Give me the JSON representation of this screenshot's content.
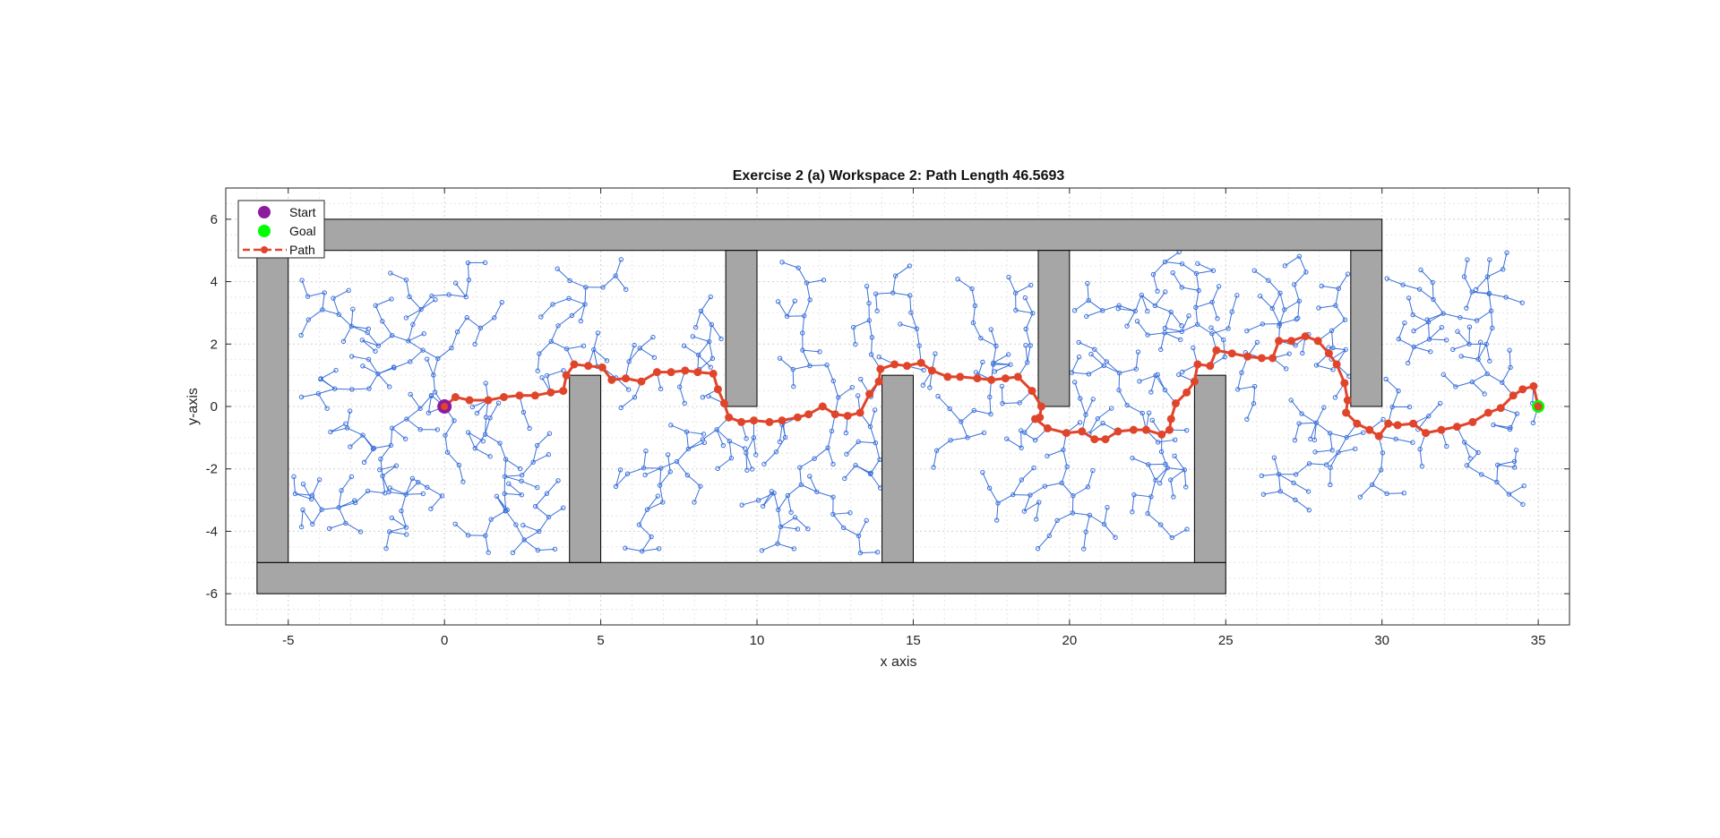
{
  "chart_data": {
    "type": "scatter",
    "title": "Exercise 2 (a) Workspace 2: Path Length 46.5693",
    "xlabel": "x axis",
    "ylabel": "y-axis",
    "xlim": [
      -7,
      36
    ],
    "ylim": [
      -7,
      7
    ],
    "x_ticks": [
      -5,
      0,
      5,
      10,
      15,
      20,
      25,
      30,
      35
    ],
    "y_ticks": [
      -6,
      -4,
      -2,
      0,
      2,
      4,
      6
    ],
    "grid": "on (major and minor, dotted)",
    "legend_position": "top-left",
    "colors": {
      "obstacle_fill": "#a6a6a6",
      "obstacle_edge": "#000000",
      "tree": "#3a6fd8",
      "path": "#e0452b",
      "start": "#8e1a9e",
      "goal": "#00ff00"
    },
    "obstacles": [
      {
        "x": [
          -6,
          30
        ],
        "y": [
          5,
          6
        ]
      },
      {
        "x": [
          -6,
          25
        ],
        "y": [
          -6,
          -5
        ]
      },
      {
        "x": [
          -6,
          -5
        ],
        "y": [
          -5,
          5
        ]
      },
      {
        "x": [
          4,
          5
        ],
        "y": [
          -5,
          1
        ]
      },
      {
        "x": [
          9,
          10
        ],
        "y": [
          0,
          5
        ]
      },
      {
        "x": [
          14,
          15
        ],
        "y": [
          -5,
          1
        ]
      },
      {
        "x": [
          19,
          20
        ],
        "y": [
          0,
          5
        ]
      },
      {
        "x": [
          24,
          25
        ],
        "y": [
          -5,
          1
        ]
      },
      {
        "x": [
          29,
          30
        ],
        "y": [
          0,
          5
        ]
      }
    ],
    "series": [
      {
        "name": "Start",
        "x": [
          0
        ],
        "y": [
          0
        ]
      },
      {
        "name": "Goal",
        "x": [
          35
        ],
        "y": [
          0
        ]
      },
      {
        "name": "Path",
        "x": [
          0,
          0.35,
          0.8,
          1.4,
          1.9,
          2.4,
          2.9,
          3.4,
          3.8,
          3.9,
          4.15,
          4.6,
          5.05,
          5.35,
          5.8,
          6.3,
          6.8,
          7.25,
          7.7,
          8.1,
          8.6,
          8.75,
          8.95,
          9.1,
          9.5,
          9.9,
          10.4,
          10.8,
          11.3,
          11.65,
          12.1,
          12.5,
          12.9,
          13.3,
          13.6,
          13.9,
          13.95,
          14.4,
          14.8,
          15.25,
          15.6,
          16.1,
          16.5,
          17.05,
          17.5,
          17.95,
          18.35,
          18.8,
          19.1,
          19.05,
          18.9,
          19.3,
          19.9,
          20.4,
          20.8,
          21.15,
          21.55,
          22.05,
          22.45,
          22.95,
          23.2,
          23.25,
          23.4,
          23.75,
          24.0,
          24.1,
          24.5,
          24.7,
          25.2,
          25.7,
          26.15,
          26.5,
          26.7,
          27.1,
          27.55,
          27.95,
          28.3,
          28.55,
          28.8,
          28.9,
          28.85,
          29.2,
          29.6,
          29.9,
          30.2,
          30.5,
          31.0,
          31.4,
          31.9,
          32.4,
          32.9,
          33.4,
          33.8,
          34.2,
          34.5,
          34.85,
          35.0
        ],
        "y": [
          0,
          0.3,
          0.2,
          0.2,
          0.3,
          0.35,
          0.35,
          0.45,
          0.5,
          1.0,
          1.35,
          1.3,
          1.25,
          0.85,
          0.9,
          0.8,
          1.1,
          1.1,
          1.15,
          1.1,
          1.05,
          0.55,
          0.1,
          -0.35,
          -0.5,
          -0.45,
          -0.5,
          -0.45,
          -0.35,
          -0.25,
          0.0,
          -0.25,
          -0.3,
          -0.2,
          0.4,
          0.8,
          1.2,
          1.35,
          1.3,
          1.4,
          1.15,
          0.95,
          0.95,
          0.9,
          0.85,
          0.9,
          0.95,
          0.5,
          0.0,
          -0.35,
          -0.4,
          -0.7,
          -0.85,
          -0.8,
          -1.05,
          -1.05,
          -0.8,
          -0.75,
          -0.75,
          -0.9,
          -0.75,
          -0.4,
          0.1,
          0.45,
          0.8,
          1.35,
          1.3,
          1.8,
          1.7,
          1.6,
          1.55,
          1.55,
          2.1,
          2.1,
          2.25,
          2.1,
          1.7,
          1.35,
          0.75,
          0.2,
          -0.2,
          -0.55,
          -0.75,
          -0.95,
          -0.55,
          -0.6,
          -0.55,
          -0.85,
          -0.75,
          -0.65,
          -0.5,
          -0.2,
          -0.05,
          0.35,
          0.55,
          0.65,
          0.0
        ]
      }
    ],
    "tree_seed": 7,
    "legend_entries": [
      "Start",
      "Goal",
      "Path"
    ]
  }
}
